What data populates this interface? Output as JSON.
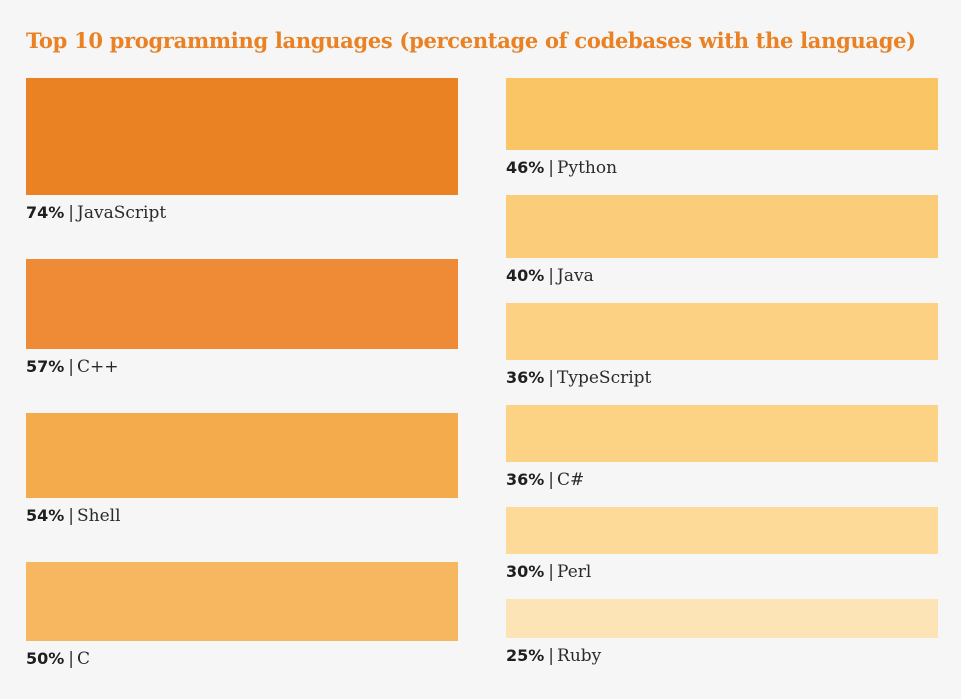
{
  "title": "Top 10 programming languages (percentage of codebases with the language)",
  "chart_data": {
    "type": "bar",
    "title": "Top 10 programming languages (percentage of codebases with the language)",
    "unit": "%",
    "categories": [
      "JavaScript",
      "C++",
      "Shell",
      "C",
      "Python",
      "Java",
      "TypeScript",
      "C#",
      "Perl",
      "Ruby"
    ],
    "values": [
      74,
      57,
      54,
      50,
      46,
      40,
      36,
      36,
      30,
      25
    ],
    "value_labels": [
      "74%",
      "57%",
      "54%",
      "50%",
      "46%",
      "40%",
      "36%",
      "36%",
      "30%",
      "25%"
    ],
    "colors": [
      "#ea8122",
      "#ef8a36",
      "#f4ab4c",
      "#f7b660",
      "#fac665",
      "#fbcc7a",
      "#fcd183",
      "#fcd384",
      "#fdda97",
      "#fde4b7"
    ],
    "separator": "|",
    "legend": "none",
    "grid": false
  }
}
